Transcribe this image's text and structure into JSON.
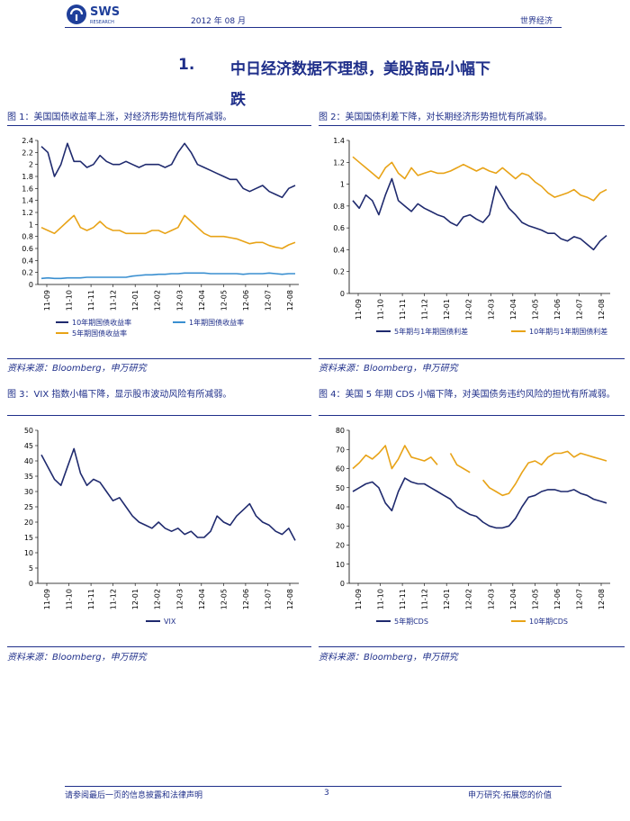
{
  "header": {
    "logo_text": "SWS",
    "logo_sub": "RESEARCH",
    "date": "2012 年 08 月",
    "section": "世界经济"
  },
  "title": {
    "number": "1.",
    "line1": "中日经济数据不理想，美股商品小幅下",
    "line2": "跌"
  },
  "figures": [
    {
      "caption": "图 1：美国国债收益率上涨，对经济形势担忧有所减弱。",
      "source": "资料来源：Bloomberg，申万研究"
    },
    {
      "caption": "图 2：美国国债利差下降，对长期经济形势担忧有所减弱。",
      "source": "资料来源：Bloomberg，申万研究"
    },
    {
      "caption": "图 3：VIX 指数小幅下降，显示股市波动风险有所减弱。",
      "source": "资料来源：Bloomberg，申万研究"
    },
    {
      "caption": "图 4：美国 5 年期 CDS 小幅下降，对美国债务违约风险的担忧有所减弱。",
      "source": "资料来源：Bloomberg，申万研究"
    }
  ],
  "footer": {
    "left": "请参阅最后一页的信息披露和法律声明",
    "page": "3",
    "right": "申万研究·拓展您的价值"
  },
  "chart_data": [
    {
      "type": "line",
      "x_ticks": [
        "11-09",
        "11-10",
        "11-11",
        "11-12",
        "12-01",
        "12-02",
        "12-03",
        "12-04",
        "12-05",
        "12-06",
        "12-07",
        "12-08"
      ],
      "ylim": [
        0,
        2.4
      ],
      "y_ticks": [
        0,
        0.2,
        0.4,
        0.6,
        0.8,
        1,
        1.2,
        1.4,
        1.6,
        1.8,
        2,
        2.2,
        2.4
      ],
      "legend": "bottom",
      "series": [
        {
          "name": "10年期国债收益率",
          "color": "#1f2a6e",
          "values": [
            2.3,
            2.2,
            1.8,
            2.0,
            2.35,
            2.05,
            2.05,
            1.95,
            2.0,
            2.15,
            2.05,
            2.0,
            2.0,
            2.05,
            2.0,
            1.95,
            2.0,
            2.0,
            2.0,
            1.95,
            2.0,
            2.2,
            2.35,
            2.2,
            2.0,
            1.95,
            1.9,
            1.85,
            1.8,
            1.75,
            1.75,
            1.6,
            1.55,
            1.6,
            1.65,
            1.55,
            1.5,
            1.45,
            1.6,
            1.65
          ]
        },
        {
          "name": "1年期国债收益率",
          "color": "#3a8fd0",
          "values": [
            0.1,
            0.11,
            0.1,
            0.1,
            0.11,
            0.11,
            0.11,
            0.12,
            0.12,
            0.12,
            0.12,
            0.12,
            0.12,
            0.12,
            0.14,
            0.15,
            0.16,
            0.16,
            0.17,
            0.17,
            0.18,
            0.18,
            0.19,
            0.19,
            0.19,
            0.19,
            0.18,
            0.18,
            0.18,
            0.18,
            0.18,
            0.17,
            0.18,
            0.18,
            0.18,
            0.19,
            0.18,
            0.17,
            0.18,
            0.18
          ]
        },
        {
          "name": "5年期国债收益率",
          "color": "#e8a317",
          "values": [
            0.95,
            0.9,
            0.85,
            0.95,
            1.05,
            1.15,
            0.95,
            0.9,
            0.95,
            1.05,
            0.95,
            0.9,
            0.9,
            0.85,
            0.85,
            0.85,
            0.85,
            0.9,
            0.9,
            0.85,
            0.9,
            0.95,
            1.15,
            1.05,
            0.95,
            0.85,
            0.8,
            0.8,
            0.8,
            0.78,
            0.76,
            0.72,
            0.68,
            0.7,
            0.7,
            0.65,
            0.62,
            0.6,
            0.66,
            0.7
          ]
        }
      ]
    },
    {
      "type": "line",
      "x_ticks": [
        "11-09",
        "11-10",
        "11-11",
        "11-12",
        "12-01",
        "12-02",
        "12-03",
        "12-04",
        "12-05",
        "12-06",
        "12-07",
        "12-08"
      ],
      "ylim": [
        0,
        1.4
      ],
      "y_ticks": [
        0,
        0.2,
        0.4,
        0.6,
        0.8,
        1,
        1.2,
        1.4
      ],
      "legend": "bottom",
      "series": [
        {
          "name": "5年期与1年期国债利差",
          "color": "#1f2a6e",
          "values": [
            0.85,
            0.78,
            0.9,
            0.85,
            0.72,
            0.9,
            1.05,
            0.85,
            0.8,
            0.75,
            0.82,
            0.78,
            0.75,
            0.72,
            0.7,
            0.65,
            0.62,
            0.7,
            0.72,
            0.68,
            0.65,
            0.72,
            0.98,
            0.88,
            0.78,
            0.72,
            0.65,
            0.62,
            0.6,
            0.58,
            0.55,
            0.55,
            0.5,
            0.48,
            0.52,
            0.5,
            0.45,
            0.4,
            0.48,
            0.53
          ]
        },
        {
          "name": "10年期与1年期国债利差",
          "color": "#e8a317",
          "values": [
            1.25,
            1.2,
            1.15,
            1.1,
            1.05,
            1.15,
            1.2,
            1.1,
            1.05,
            1.15,
            1.08,
            1.1,
            1.12,
            1.1,
            1.1,
            1.12,
            1.15,
            1.18,
            1.15,
            1.12,
            1.15,
            1.12,
            1.1,
            1.15,
            1.1,
            1.05,
            1.1,
            1.08,
            1.02,
            0.98,
            0.92,
            0.88,
            0.9,
            0.92,
            0.95,
            0.9,
            0.88,
            0.85,
            0.92,
            0.95
          ]
        }
      ]
    },
    {
      "type": "line",
      "x_ticks": [
        "11-09",
        "11-10",
        "11-11",
        "11-12",
        "12-01",
        "12-02",
        "12-03",
        "12-04",
        "12-05",
        "12-06",
        "12-07",
        "12-08"
      ],
      "ylim": [
        0,
        50
      ],
      "y_ticks": [
        0,
        5,
        10,
        15,
        20,
        25,
        30,
        35,
        40,
        45,
        50
      ],
      "legend": "bottom",
      "series": [
        {
          "name": "VIX",
          "color": "#1f2a6e",
          "values": [
            42,
            38,
            34,
            32,
            38,
            44,
            36,
            32,
            34,
            33,
            30,
            27,
            28,
            25,
            22,
            20,
            19,
            18,
            20,
            18,
            17,
            18,
            16,
            17,
            15,
            15,
            17,
            22,
            20,
            19,
            22,
            24,
            26,
            22,
            20,
            19,
            17,
            16,
            18,
            14
          ]
        }
      ]
    },
    {
      "type": "line",
      "x_ticks": [
        "11-09",
        "11-10",
        "11-11",
        "11-12",
        "12-01",
        "12-02",
        "12-03",
        "12-04",
        "12-05",
        "12-06",
        "12-07",
        "12-08"
      ],
      "ylim": [
        0,
        80
      ],
      "y_ticks": [
        0,
        10,
        20,
        30,
        40,
        50,
        60,
        70,
        80
      ],
      "legend": "bottom",
      "series": [
        {
          "name": "5年期CDS",
          "color": "#1f2a6e",
          "values": [
            48,
            50,
            52,
            53,
            50,
            42,
            38,
            48,
            55,
            53,
            52,
            52,
            50,
            48,
            46,
            44,
            40,
            38,
            36,
            35,
            32,
            30,
            29,
            29,
            30,
            34,
            40,
            45,
            46,
            48,
            49,
            49,
            48,
            48,
            49,
            47,
            46,
            44,
            43,
            42
          ]
        },
        {
          "name": "10年期CDS",
          "color": "#e8a317",
          "values": [
            60,
            63,
            67,
            65,
            68,
            72,
            60,
            65,
            72,
            66,
            65,
            64,
            66,
            62,
            null,
            68,
            62,
            60,
            58,
            null,
            54,
            50,
            48,
            46,
            47,
            52,
            58,
            63,
            64,
            62,
            66,
            68,
            68,
            69,
            66,
            68,
            67,
            66,
            65,
            64
          ]
        }
      ]
    }
  ]
}
